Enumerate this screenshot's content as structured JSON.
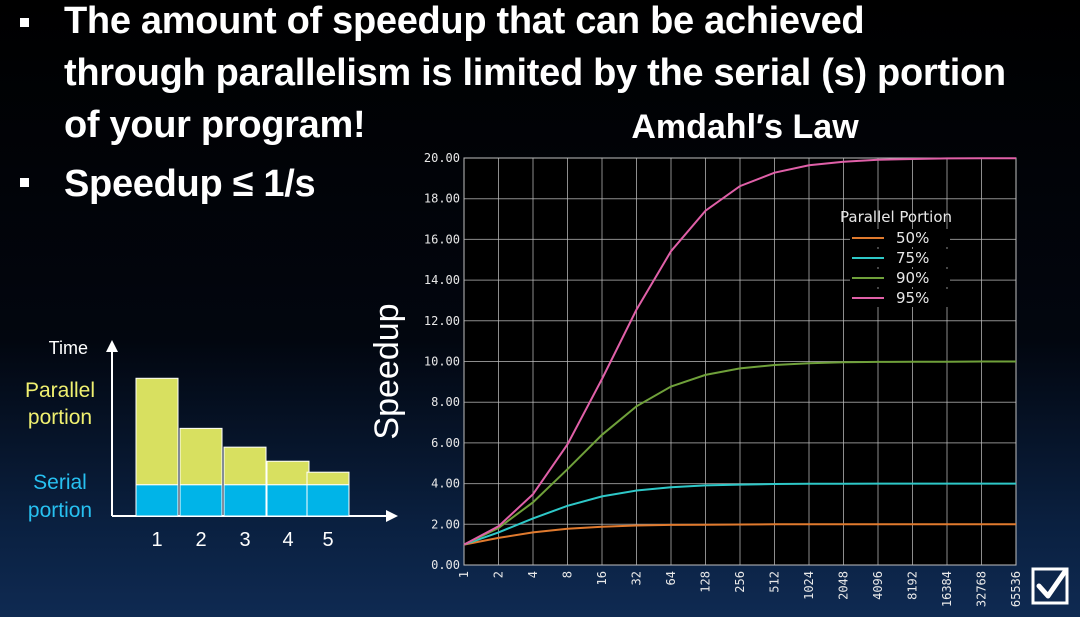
{
  "bullets": [
    {
      "text_lines": [
        "The amount of speedup that can be achieved",
        "through parallelism is limited by the serial (s) portion",
        "of your program!"
      ]
    },
    {
      "text": "Speedup ≤ 1/s"
    }
  ],
  "colors": {
    "parallel": "#d8e060",
    "serial": "#00b4e8",
    "legend_labels": "#f0f070",
    "serial_label": "#27c0f0"
  },
  "icons": {
    "corner": "checkbox-checked-icon"
  },
  "chart_data": [
    {
      "type": "bar",
      "stacked": true,
      "ylabel": "Time",
      "categories": [
        "1",
        "2",
        "3",
        "4",
        "5"
      ],
      "series": [
        {
          "name": "Serial portion",
          "values": [
            1,
            1,
            1,
            1,
            1
          ]
        },
        {
          "name": "Parallel portion",
          "values": [
            3.4,
            1.8,
            1.2,
            0.75,
            0.4
          ]
        }
      ],
      "ylim": [
        0,
        4.8
      ]
    },
    {
      "type": "line",
      "title": "Amdahl′s Law",
      "ylabel": "Speedup",
      "xlabel": "",
      "x_scale": "log2",
      "x": [
        "1",
        "2",
        "4",
        "8",
        "16",
        "32",
        "64",
        "128",
        "256",
        "512",
        "1024",
        "2048",
        "4096",
        "8192",
        "16384",
        "32768",
        "65536"
      ],
      "yticks": [
        "0.00",
        "2.00",
        "4.00",
        "6.00",
        "8.00",
        "10.00",
        "12.00",
        "14.00",
        "16.00",
        "18.00",
        "20.00"
      ],
      "ylim": [
        0,
        20
      ],
      "grid": true,
      "legend_title": "Parallel Portion",
      "legend_position": "top-right",
      "series": [
        {
          "name": "50%",
          "color": "#e07a2e",
          "values": [
            1,
            1.33,
            1.6,
            1.78,
            1.88,
            1.94,
            1.97,
            1.98,
            1.99,
            2.0,
            2.0,
            2.0,
            2.0,
            2.0,
            2.0,
            2.0,
            2.0
          ]
        },
        {
          "name": "75%",
          "color": "#2ec8c8",
          "values": [
            1,
            1.6,
            2.29,
            2.91,
            3.37,
            3.66,
            3.82,
            3.91,
            3.95,
            3.98,
            3.99,
            3.99,
            4.0,
            4.0,
            4.0,
            4.0,
            4.0
          ]
        },
        {
          "name": "90%",
          "color": "#6fa03a",
          "values": [
            1,
            1.82,
            3.08,
            4.71,
            6.4,
            7.8,
            8.77,
            9.34,
            9.66,
            9.83,
            9.91,
            9.96,
            9.98,
            9.99,
            9.99,
            10.0,
            10.0
          ]
        },
        {
          "name": "95%",
          "color": "#e060a8",
          "values": [
            1,
            1.9,
            3.48,
            5.93,
            9.14,
            12.55,
            15.42,
            17.41,
            18.62,
            19.28,
            19.64,
            19.82,
            19.91,
            19.95,
            19.98,
            19.99,
            19.99
          ]
        }
      ]
    }
  ]
}
